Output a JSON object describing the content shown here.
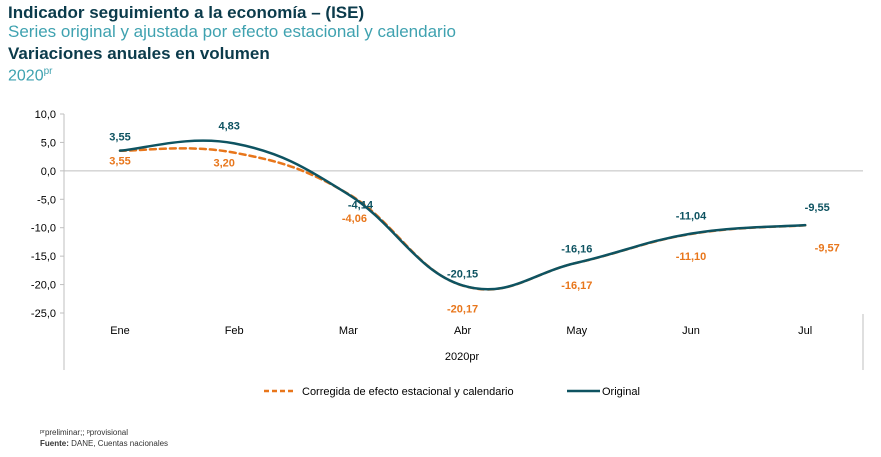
{
  "header": {
    "title": "Indicador seguimiento a la economía – (ISE)",
    "subtitle": "Series original y ajustada por efecto estacional y calendario",
    "heading": "Variaciones anuales en volumen",
    "year": "2020",
    "year_sup": "pr"
  },
  "footnote": {
    "note": "ᵖʳpreliminar;; ᵖprovisional",
    "source_label": "Fuente:",
    "source_text": " DANE, Cuentas nacionales"
  },
  "colors": {
    "original": "#0e5361",
    "adjusted": "#e8761b",
    "axis": "#bfbfbf",
    "text": "#000000"
  },
  "chart_data": {
    "type": "line",
    "categories": [
      "Ene",
      "Feb",
      "Mar",
      "Abr",
      "May",
      "Jun",
      "Jul"
    ],
    "x_tick_labels": [
      "Ene",
      "Feb",
      "Mar",
      "Abr",
      "May",
      "Jun",
      "Jul"
    ],
    "xlabel": "2020pr",
    "ylabel": "",
    "ylim": [
      -25,
      10
    ],
    "y_tick_labels": [
      "10,0",
      "5,0",
      "0,0",
      "-5,0",
      "-10,0",
      "-15,0",
      "-20,0",
      "-25,0"
    ],
    "series": [
      {
        "name": "Original",
        "values": [
          3.55,
          4.83,
          -4.14,
          -20.15,
          -16.16,
          -11.04,
          -9.55
        ],
        "labels": [
          "3,55",
          "4,83",
          "-4,14",
          "-20,15",
          "-16,16",
          "-11,04",
          "-9,55"
        ],
        "color": "#0e5361",
        "style": "solid"
      },
      {
        "name": "Corregida de efecto estacional y calendario",
        "values": [
          3.55,
          3.2,
          -4.06,
          -20.17,
          -16.17,
          -11.1,
          -9.57
        ],
        "labels": [
          "3,55",
          "3,20",
          "-4,06",
          "-20,17",
          "-16,17",
          "-11,10",
          "-9,57"
        ],
        "color": "#e8761b",
        "style": "dashed"
      }
    ],
    "legend": [
      "Corregida de efecto estacional y calendario",
      "Original"
    ],
    "legend_position": "bottom",
    "grid": false
  }
}
